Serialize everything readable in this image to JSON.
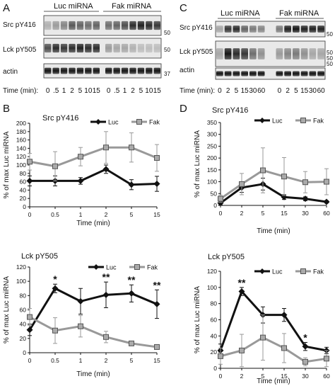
{
  "panels": {
    "A": {
      "letter": "A",
      "group_labels": [
        "Luc miRNA",
        "Fak miRNA"
      ],
      "row_labels": [
        "Src pY416",
        "Lck pY505",
        "actin"
      ],
      "mw_markers": [
        "50",
        "50",
        "37"
      ],
      "time_label": "Time (min):",
      "time_points": [
        "0",
        ".5",
        "1",
        "2",
        "5",
        "10",
        "15",
        "0",
        ".5",
        "1",
        "2",
        "5",
        "10",
        "15"
      ]
    },
    "C": {
      "letter": "C",
      "group_labels": [
        "Luc miRNA",
        "Fak miRNA"
      ],
      "row_labels": [
        "Src pY416",
        "Lck pY505",
        "actin"
      ],
      "mw_markers": [
        "50",
        "50",
        "50",
        "50"
      ],
      "time_label": "Time (min):",
      "time_points": [
        "0",
        "2",
        "5",
        "15",
        "30",
        "60",
        "0",
        "2",
        "5",
        "15",
        "30",
        "60"
      ]
    },
    "B": {
      "letter": "B"
    },
    "D": {
      "letter": "D"
    }
  },
  "chart_data": [
    {
      "panel": "B",
      "type": "line",
      "title": "Src pY416",
      "xlabel": "Time (min)",
      "ylabel": "% of max Luc miRNA",
      "categories": [
        "0",
        "0.5",
        "1",
        "2",
        "5",
        "15"
      ],
      "ylim": [
        0,
        200
      ],
      "yticks": [
        "0",
        "20",
        "40",
        "60",
        "80",
        "100",
        "120",
        "140",
        "160",
        "180",
        "200"
      ],
      "legend": "top-center",
      "series": [
        {
          "name": "Luc",
          "color": "#111111",
          "marker": "diamond",
          "values": [
            62,
            62,
            62,
            90,
            53,
            55
          ],
          "errors": [
            12,
            12,
            8,
            10,
            12,
            18
          ]
        },
        {
          "name": "Fak",
          "color": "#999999",
          "marker": "square",
          "values": [
            108,
            97,
            120,
            142,
            142,
            117
          ],
          "errors": [
            20,
            35,
            22,
            38,
            35,
            32
          ]
        }
      ],
      "annotations": []
    },
    {
      "panel": "D",
      "type": "line",
      "title": "Src pY416",
      "xlabel": "Time (min)",
      "ylabel": "% of max Luc miRNA",
      "categories": [
        "0",
        "2",
        "5",
        "15",
        "30",
        "60"
      ],
      "ylim": [
        0,
        350
      ],
      "yticks": [
        "0",
        "50",
        "100",
        "150",
        "200",
        "250",
        "300",
        "350"
      ],
      "legend": "top-center",
      "series": [
        {
          "name": "Luc",
          "color": "#111111",
          "marker": "diamond",
          "values": [
            10,
            75,
            90,
            35,
            28,
            15
          ],
          "errors": [
            8,
            20,
            25,
            10,
            8,
            5
          ]
        },
        {
          "name": "Fak",
          "color": "#999999",
          "marker": "square",
          "values": [
            28,
            90,
            148,
            122,
            98,
            100
          ],
          "errors": [
            15,
            45,
            95,
            80,
            45,
            55
          ]
        }
      ],
      "annotations": []
    },
    {
      "panel": "B",
      "type": "line",
      "title": "Lck pY505",
      "xlabel": "Time (min)",
      "ylabel": "% of max Luc miRNA",
      "categories": [
        "0",
        "0.5",
        "1",
        "2",
        "5",
        "15"
      ],
      "ylim": [
        0,
        120
      ],
      "yticks": [
        "0",
        "20",
        "40",
        "60",
        "80",
        "100",
        "120"
      ],
      "legend": "top-center",
      "series": [
        {
          "name": "Luc",
          "color": "#111111",
          "marker": "diamond",
          "values": [
            32,
            90,
            72,
            81,
            83,
            68
          ],
          "errors": [
            8,
            6,
            18,
            18,
            12,
            20
          ]
        },
        {
          "name": "Fak",
          "color": "#999999",
          "marker": "square",
          "values": [
            50,
            31,
            37,
            22,
            13,
            8
          ],
          "errors": [
            12,
            18,
            15,
            8,
            3,
            2
          ]
        }
      ],
      "annotations": [
        {
          "x": "0.5",
          "text": "*"
        },
        {
          "x": "2",
          "text": "**"
        },
        {
          "x": "5",
          "text": "**"
        },
        {
          "x": "15",
          "text": "**"
        }
      ]
    },
    {
      "panel": "D",
      "type": "line",
      "title": "Lck pY505",
      "xlabel": "Time (min)",
      "ylabel": "% of max Luc miRNA",
      "categories": [
        "0",
        "2",
        "5",
        "15",
        "30",
        "60"
      ],
      "ylim": [
        0,
        120
      ],
      "yticks": [
        "0",
        "20",
        "40",
        "60",
        "80",
        "100",
        "120"
      ],
      "legend": "top-center",
      "series": [
        {
          "name": "Luc",
          "color": "#111111",
          "marker": "diamond",
          "values": [
            22,
            95,
            66,
            66,
            27,
            22
          ],
          "errors": [
            8,
            5,
            10,
            8,
            5,
            4
          ]
        },
        {
          "name": "Fak",
          "color": "#999999",
          "marker": "square",
          "values": [
            15,
            22,
            38,
            25,
            8,
            12
          ],
          "errors": [
            10,
            20,
            28,
            18,
            5,
            10
          ]
        }
      ],
      "annotations": [
        {
          "x": "2",
          "text": "**"
        },
        {
          "x": "30",
          "text": "*"
        }
      ]
    }
  ]
}
